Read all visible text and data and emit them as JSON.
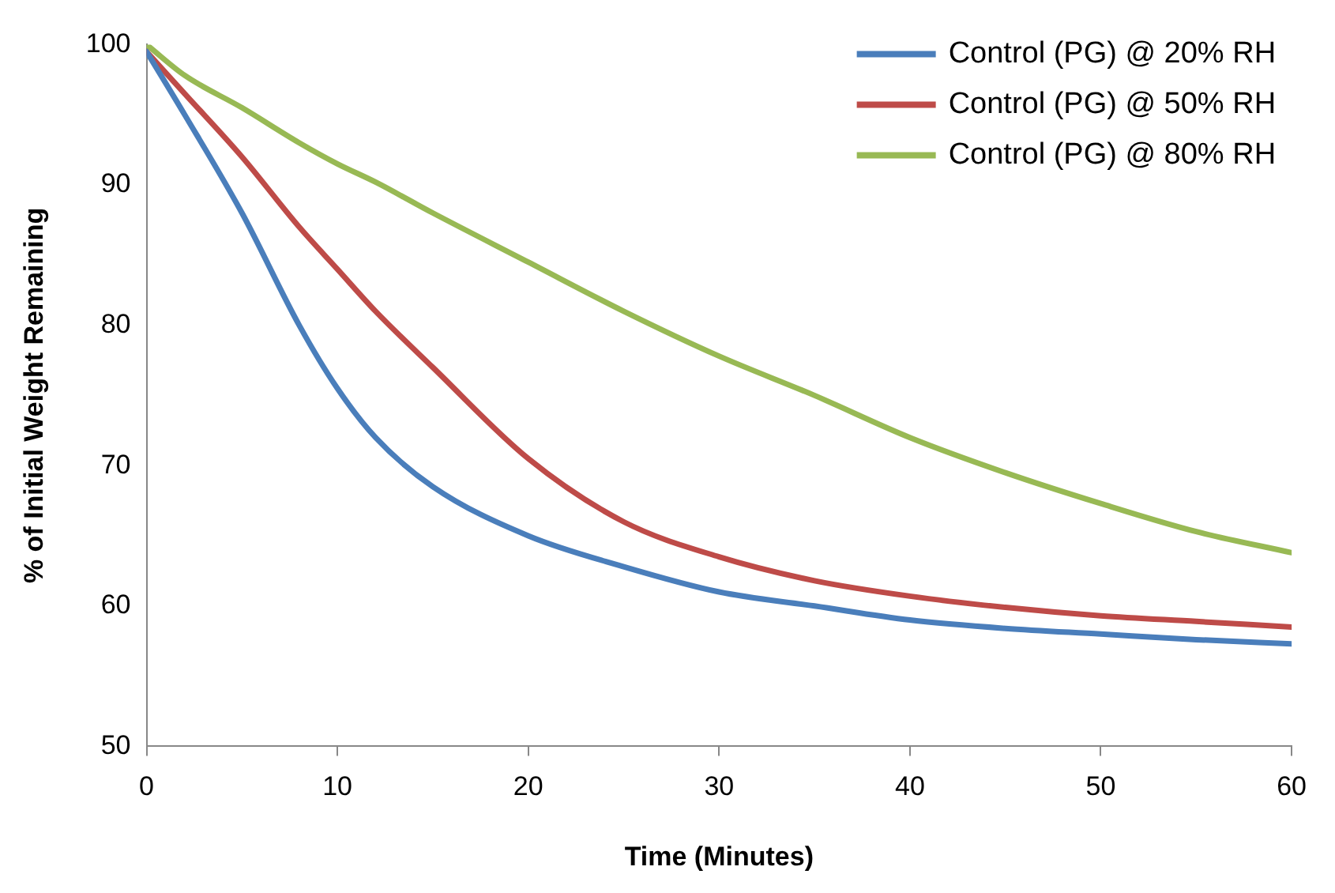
{
  "chart_data": {
    "type": "line",
    "xlabel": "Time (Minutes)",
    "ylabel": "% of Initial Weight Remaining",
    "x": [
      0,
      2,
      5,
      8,
      10,
      12,
      15,
      20,
      25,
      30,
      35,
      40,
      45,
      50,
      55,
      60
    ],
    "series": [
      {
        "name": "Control (PG) @ 20% RH",
        "color": "#4a7ebb",
        "values": [
          99.5,
          95,
          88,
          80,
          75.5,
          72,
          68.5,
          65,
          62.8,
          61,
          60,
          59,
          58.4,
          58,
          57.6,
          57.3
        ]
      },
      {
        "name": "Control (PG) @ 50% RH",
        "color": "#be4b48",
        "values": [
          99.5,
          96.5,
          92,
          87,
          84,
          81,
          77,
          70.5,
          66,
          63.5,
          61.8,
          60.7,
          59.9,
          59.3,
          58.9,
          58.5
        ]
      },
      {
        "name": "Control (PG) @ 80% RH",
        "color": "#98b954",
        "values": [
          100,
          97.8,
          95.5,
          93,
          91.5,
          90.2,
          88,
          84.5,
          81,
          77.8,
          75,
          72,
          69.5,
          67.3,
          65.3,
          63.8
        ]
      }
    ],
    "xlim": [
      0,
      60
    ],
    "xticks": [
      0,
      10,
      20,
      30,
      40,
      50,
      60
    ],
    "ylim": [
      50,
      100
    ],
    "yticks": [
      50,
      60,
      70,
      80,
      90,
      100
    ],
    "grid": false,
    "legend": "top right",
    "marker": "none",
    "line_style": "solid"
  }
}
